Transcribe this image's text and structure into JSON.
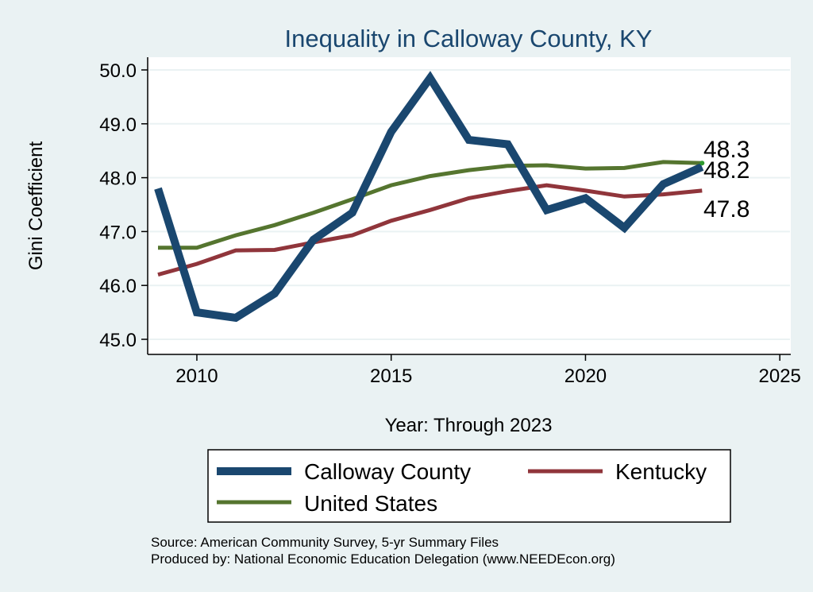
{
  "chart_data": {
    "type": "line",
    "title": "Inequality in Calloway County, KY",
    "xlabel": "Year: Through 2023",
    "ylabel": "Gini Coefficient",
    "xlim": [
      2009,
      2025
    ],
    "ylim": [
      45.0,
      50.0
    ],
    "x_ticks": [
      2010,
      2015,
      2020,
      2025
    ],
    "y_ticks": [
      "45.0",
      "46.0",
      "47.0",
      "48.0",
      "49.0",
      "50.0"
    ],
    "grid": true,
    "legend_position": "bottom",
    "x": [
      2009,
      2010,
      2011,
      2012,
      2013,
      2014,
      2015,
      2016,
      2017,
      2018,
      2019,
      2020,
      2021,
      2022,
      2023
    ],
    "series": [
      {
        "name": "Calloway County",
        "color": "#1a476f",
        "values": [
          47.8,
          45.5,
          45.4,
          45.85,
          46.85,
          47.35,
          48.85,
          49.85,
          48.7,
          48.62,
          47.4,
          47.62,
          47.07,
          47.88,
          48.2
        ],
        "end_label": "48.2"
      },
      {
        "name": "Kentucky",
        "color": "#90353b",
        "values": [
          46.2,
          46.4,
          46.65,
          46.66,
          46.8,
          46.93,
          47.2,
          47.4,
          47.62,
          47.75,
          47.86,
          47.76,
          47.65,
          47.69,
          47.76
        ],
        "end_label": "47.8"
      },
      {
        "name": "United States",
        "color": "#55752f",
        "values": [
          46.7,
          46.7,
          46.93,
          47.12,
          47.35,
          47.6,
          47.86,
          48.03,
          48.14,
          48.22,
          48.23,
          48.17,
          48.18,
          48.29,
          48.27
        ],
        "end_label": "48.3"
      }
    ],
    "notes": [
      "Source: American Community Survey, 5-yr Summary Files",
      "Produced by: National Economic Education Delegation (www.NEEDEcon.org)"
    ]
  }
}
